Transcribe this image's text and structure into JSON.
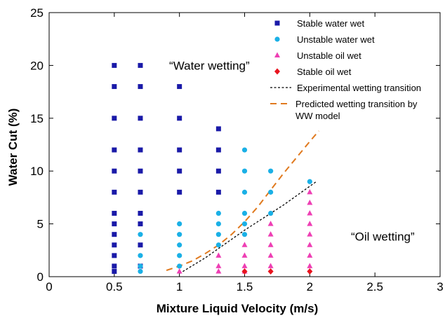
{
  "chart_data": {
    "type": "scatter",
    "title": "",
    "xlabel": "Mixture Liquid Velocity (m/s)",
    "ylabel": "Water Cut (%)",
    "xlim": [
      0,
      3
    ],
    "ylim": [
      0,
      25
    ],
    "xticks": [
      "0",
      "0.5",
      "1",
      "1.5",
      "2",
      "2.5",
      "3"
    ],
    "yticks": [
      "0",
      "5",
      "10",
      "15",
      "20",
      "25"
    ],
    "grid": false,
    "legend_position": "top-right",
    "annotations": [
      {
        "text": "“Water wetting”",
        "x": 1.23,
        "y": 19.6
      },
      {
        "text": "“Oil wetting”",
        "x": 2.56,
        "y": 3.4
      }
    ],
    "series": [
      {
        "name": "Stable water wet",
        "marker": "square",
        "color": "#1a1aa8",
        "points": [
          [
            0.5,
            20
          ],
          [
            0.5,
            18
          ],
          [
            0.5,
            15
          ],
          [
            0.5,
            12
          ],
          [
            0.5,
            10
          ],
          [
            0.5,
            8
          ],
          [
            0.5,
            6
          ],
          [
            0.5,
            5
          ],
          [
            0.5,
            4
          ],
          [
            0.5,
            3
          ],
          [
            0.5,
            2
          ],
          [
            0.5,
            1
          ],
          [
            0.5,
            0.5
          ],
          [
            0.7,
            20
          ],
          [
            0.7,
            18
          ],
          [
            0.7,
            15
          ],
          [
            0.7,
            12
          ],
          [
            0.7,
            10
          ],
          [
            0.7,
            8
          ],
          [
            0.7,
            6
          ],
          [
            0.7,
            5
          ],
          [
            0.7,
            3
          ],
          [
            0.7,
            1
          ],
          [
            1.0,
            18
          ],
          [
            1.0,
            15
          ],
          [
            1.0,
            12
          ],
          [
            1.0,
            10
          ],
          [
            1.0,
            8
          ],
          [
            1.3,
            14
          ],
          [
            1.3,
            12
          ],
          [
            1.3,
            10
          ],
          [
            1.3,
            8
          ]
        ]
      },
      {
        "name": "Unstable water wet",
        "marker": "circle",
        "color": "#1ab0e6",
        "points": [
          [
            0.7,
            4
          ],
          [
            0.7,
            2
          ],
          [
            0.7,
            1
          ],
          [
            0.7,
            0.5
          ],
          [
            1.0,
            5
          ],
          [
            1.0,
            4
          ],
          [
            1.0,
            3
          ],
          [
            1.0,
            2
          ],
          [
            1.0,
            1
          ],
          [
            1.3,
            6
          ],
          [
            1.3,
            5
          ],
          [
            1.3,
            4
          ],
          [
            1.3,
            3
          ],
          [
            1.5,
            12
          ],
          [
            1.5,
            10
          ],
          [
            1.5,
            8
          ],
          [
            1.5,
            6
          ],
          [
            1.5,
            5
          ],
          [
            1.5,
            4
          ],
          [
            1.7,
            10
          ],
          [
            1.7,
            8
          ],
          [
            1.7,
            6
          ],
          [
            2.0,
            9
          ]
        ]
      },
      {
        "name": "Unstable oil wet",
        "marker": "triangle",
        "color": "#ee3fb4",
        "points": [
          [
            1.0,
            0.5
          ],
          [
            1.3,
            2
          ],
          [
            1.3,
            1
          ],
          [
            1.3,
            0.5
          ],
          [
            1.5,
            3
          ],
          [
            1.5,
            2
          ],
          [
            1.5,
            1
          ],
          [
            1.5,
            0.5
          ],
          [
            1.7,
            5
          ],
          [
            1.7,
            4
          ],
          [
            1.7,
            3
          ],
          [
            1.7,
            2
          ],
          [
            1.7,
            1
          ],
          [
            2.0,
            8
          ],
          [
            2.0,
            7
          ],
          [
            2.0,
            6
          ],
          [
            2.0,
            5
          ],
          [
            2.0,
            4
          ],
          [
            2.0,
            3
          ],
          [
            2.0,
            2
          ],
          [
            2.0,
            1
          ]
        ]
      },
      {
        "name": "Stable oil wet",
        "marker": "diamond",
        "color": "#e8141e",
        "points": [
          [
            1.5,
            0.5
          ],
          [
            1.7,
            0.5
          ],
          [
            2.0,
            0.5
          ]
        ]
      },
      {
        "name": "Experimental wetting transition",
        "type": "line",
        "style": "dotted",
        "color": "#000000",
        "points": [
          [
            1.0,
            0.3
          ],
          [
            1.2,
            1.8
          ],
          [
            1.5,
            4.4
          ],
          [
            1.8,
            6.8
          ],
          [
            2.05,
            9.0
          ]
        ]
      },
      {
        "name": "Predicted wetting transition by WW model",
        "legend_lines": [
          "Predicted wetting transition by",
          "WW model"
        ],
        "type": "line",
        "style": "dashed",
        "color": "#e07a1f",
        "points": [
          [
            0.9,
            0.6
          ],
          [
            1.0,
            1.0
          ],
          [
            1.1,
            1.5
          ],
          [
            1.2,
            2.2
          ],
          [
            1.3,
            3.0
          ],
          [
            1.4,
            4.0
          ],
          [
            1.5,
            5.2
          ],
          [
            1.6,
            6.6
          ],
          [
            1.7,
            8.2
          ],
          [
            1.8,
            9.8
          ],
          [
            1.9,
            11.3
          ],
          [
            2.0,
            12.8
          ],
          [
            2.07,
            13.8
          ]
        ]
      }
    ]
  }
}
